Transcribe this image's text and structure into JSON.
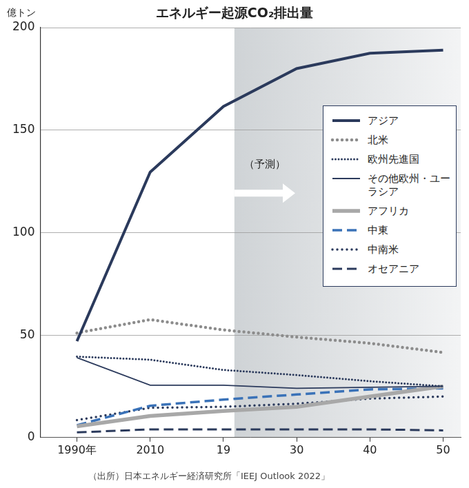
{
  "chart_data": {
    "type": "line",
    "title": "エネルギー起源CO₂排出量",
    "y_label": "億トン",
    "categories": [
      "1990年",
      "2010",
      "19",
      "30",
      "40",
      "50"
    ],
    "series": [
      {
        "name": "アジア",
        "color": "#2b3a5c",
        "line_style": "solid",
        "values": [
          47,
          129.5,
          161.5,
          180,
          187.5,
          189
        ]
      },
      {
        "name": "北米",
        "color": "#8c8c8c",
        "line_style": "dotted",
        "values": [
          51,
          57.5,
          52.5,
          49,
          46,
          41.5
        ]
      },
      {
        "name": "欧州先進国",
        "color": "#2b3a5c",
        "line_style": "dense-dotted",
        "values": [
          39.5,
          38,
          33,
          30.5,
          27.5,
          25
        ]
      },
      {
        "name": "その他欧州・ユーラシア",
        "color": "#2b3a5c",
        "line_style": "solid",
        "values": [
          39,
          25.5,
          25.5,
          24,
          24.5,
          25
        ]
      },
      {
        "name": "アフリカ",
        "color": "#a8a8a8",
        "line_style": "solid",
        "values": [
          5.5,
          10.5,
          13,
          15,
          20,
          25
        ]
      },
      {
        "name": "中東",
        "color": "#3a72b8",
        "line_style": "dashed",
        "values": [
          6,
          15.5,
          18.5,
          21,
          23.5,
          24
        ]
      },
      {
        "name": "中南米",
        "color": "#2b3a5c",
        "line_style": "dotted",
        "values": [
          8.5,
          14.5,
          15,
          16.5,
          19,
          20
        ]
      },
      {
        "name": "オセアニア",
        "color": "#2b3a5c",
        "line_style": "dashed",
        "values": [
          2.5,
          4,
          4,
          4,
          4,
          3.5
        ]
      }
    ],
    "ylim": [
      0,
      200
    ],
    "yticks": [
      0,
      50,
      100,
      150,
      200
    ],
    "grid": true,
    "legend": "upper right",
    "annotations": [
      {
        "text": "（予測）",
        "shade_from": "19"
      }
    ],
    "source": "（出所）日本エネルギー経済研究所「IEEJ Outlook 2022」"
  }
}
